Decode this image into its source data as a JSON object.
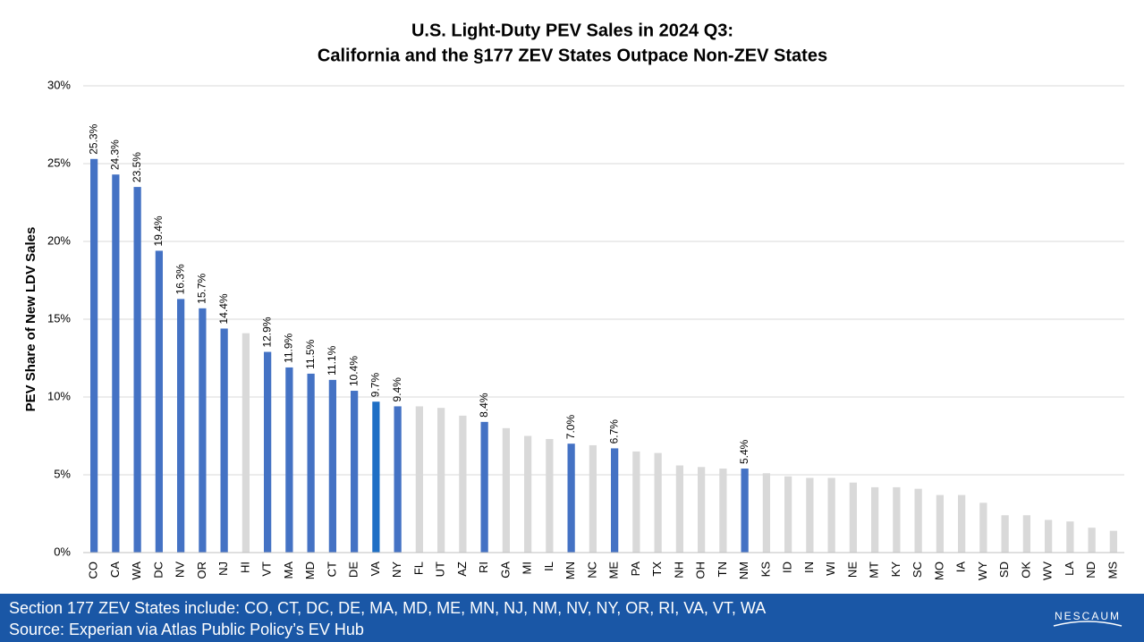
{
  "chart_data": {
    "type": "bar",
    "title": [
      "U.S. Light-Duty PEV Sales in 2024 Q3:",
      "California and the §177 ZEV States Outpace Non-ZEV States"
    ],
    "y_label": "PEV Share of New LDV Sales",
    "categories": [
      "CO",
      "CA",
      "WA",
      "DC",
      "NV",
      "OR",
      "NJ",
      "HI",
      "VT",
      "MA",
      "MD",
      "CT",
      "DE",
      "VA",
      "NY",
      "FL",
      "UT",
      "AZ",
      "RI",
      "GA",
      "MI",
      "IL",
      "MN",
      "NC",
      "ME",
      "PA",
      "TX",
      "NH",
      "OH",
      "TN",
      "NM",
      "KS",
      "ID",
      "IN",
      "WI",
      "NE",
      "MT",
      "KY",
      "SC",
      "MO",
      "IA",
      "WY",
      "SD",
      "OK",
      "WV",
      "LA",
      "ND",
      "MS"
    ],
    "values": [
      25.3,
      24.3,
      23.5,
      19.4,
      16.3,
      15.7,
      14.4,
      14.1,
      12.9,
      11.9,
      11.5,
      11.1,
      10.4,
      9.7,
      9.4,
      9.4,
      9.3,
      8.8,
      8.4,
      8.0,
      7.5,
      7.3,
      7.0,
      6.9,
      6.7,
      6.5,
      6.4,
      5.6,
      5.5,
      5.4,
      5.4,
      5.1,
      4.9,
      4.8,
      4.8,
      4.5,
      4.2,
      4.2,
      4.1,
      3.7,
      3.7,
      3.2,
      2.4,
      2.4,
      2.1,
      2.0,
      1.6,
      1.4
    ],
    "value_labels": [
      "25.3%",
      "24.3%",
      "23.5%",
      "19.4%",
      "16.3%",
      "15.7%",
      "14.4%",
      null,
      "12.9%",
      "11.9%",
      "11.5%",
      "11.1%",
      "10.4%",
      "9.7%",
      "9.4%",
      null,
      null,
      null,
      "8.4%",
      null,
      null,
      null,
      "7.0%",
      null,
      "6.7%",
      null,
      null,
      null,
      null,
      null,
      "5.4%",
      null,
      null,
      null,
      null,
      null,
      null,
      null,
      null,
      null,
      null,
      null,
      null,
      null,
      null,
      null,
      null,
      null
    ],
    "colors": [
      "#4472c4",
      "#4472c4",
      "#4472c4",
      "#4472c4",
      "#4472c4",
      "#4472c4",
      "#4472c4",
      "#d9d9d9",
      "#4472c4",
      "#4472c4",
      "#4472c4",
      "#4472c4",
      "#4472c4",
      "#1f6fc5",
      "#4472c4",
      "#d9d9d9",
      "#d9d9d9",
      "#d9d9d9",
      "#4472c4",
      "#d9d9d9",
      "#d9d9d9",
      "#d9d9d9",
      "#4472c4",
      "#d9d9d9",
      "#4472c4",
      "#d9d9d9",
      "#d9d9d9",
      "#d9d9d9",
      "#d9d9d9",
      "#d9d9d9",
      "#4472c4",
      "#d9d9d9",
      "#d9d9d9",
      "#d9d9d9",
      "#d9d9d9",
      "#d9d9d9",
      "#d9d9d9",
      "#d9d9d9",
      "#d9d9d9",
      "#d9d9d9",
      "#d9d9d9",
      "#d9d9d9",
      "#d9d9d9",
      "#d9d9d9",
      "#d9d9d9",
      "#d9d9d9",
      "#d9d9d9",
      "#d9d9d9"
    ],
    "ylim": [
      0,
      30
    ],
    "yticks": [
      {
        "value": 0,
        "label": "0%"
      },
      {
        "value": 5,
        "label": "5%"
      },
      {
        "value": 10,
        "label": "10%"
      },
      {
        "value": 15,
        "label": "15%"
      },
      {
        "value": 20,
        "label": "20%"
      },
      {
        "value": 25,
        "label": "25%"
      },
      {
        "value": 30,
        "label": "30%"
      }
    ],
    "grid": true
  },
  "footer": {
    "note": "Section 177 ZEV States include: CO, CT, DC, DE, MA, MD, ME, MN, NJ, NM, NV, NY, OR, RI, VA, VT, WA",
    "source": "Source: Experian via Atlas Public Policy’s EV Hub",
    "logo": "NESCAUM"
  }
}
